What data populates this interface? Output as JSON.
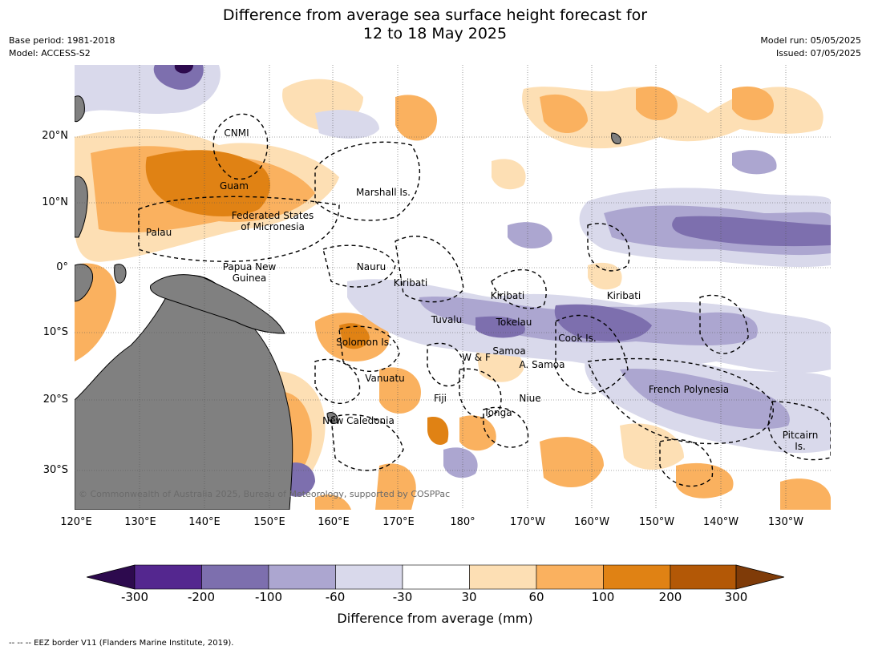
{
  "header": {
    "title_line1": "Difference from average sea surface height forecast for",
    "title_line2": "12 to 18 May 2025",
    "base_period": "Base period: 1981-2018",
    "model": "Model: ACCESS-S2",
    "model_run": "Model run: 05/05/2025",
    "issued": "Issued: 07/05/2025"
  },
  "axes": {
    "lat_labels": [
      "20°N",
      "10°N",
      "0°",
      "10°S",
      "20°S",
      "30°S"
    ],
    "lon_labels": [
      "120°E",
      "130°E",
      "140°E",
      "150°E",
      "160°E",
      "170°E",
      "180°",
      "170°W",
      "160°W",
      "150°W",
      "140°W",
      "130°W"
    ]
  },
  "places": [
    {
      "name": "CNMI"
    },
    {
      "name": "Guam"
    },
    {
      "name": "Marshall Is."
    },
    {
      "name": "Federated States\nof Micronesia"
    },
    {
      "name": "Palau"
    },
    {
      "name": "Nauru"
    },
    {
      "name": "Papua New\nGuinea"
    },
    {
      "name": "Kiribati"
    },
    {
      "name": "Kiribati"
    },
    {
      "name": "Kiribati"
    },
    {
      "name": "Tuvalu"
    },
    {
      "name": "Tokelau"
    },
    {
      "name": "Cook Is."
    },
    {
      "name": "Solomon Is."
    },
    {
      "name": "Samoa"
    },
    {
      "name": "W & F"
    },
    {
      "name": "A. Samoa"
    },
    {
      "name": "Vanuatu"
    },
    {
      "name": "Fiji"
    },
    {
      "name": "Niue"
    },
    {
      "name": "Tonga"
    },
    {
      "name": "French Polynesia"
    },
    {
      "name": "New Caledonia"
    },
    {
      "name": "Pitcairn\nIs."
    }
  ],
  "copyright": "© Commonwealth of Australia 2025, Bureau of Meteorology, supported by COSPPac",
  "colorbar": {
    "ticks": [
      "-300",
      "-200",
      "-100",
      "-60",
      "-30",
      "30",
      "60",
      "100",
      "200",
      "300"
    ],
    "colors": [
      "#2d0a4e",
      "#54278f",
      "#7d6fae",
      "#aca6d0",
      "#d9d9eb",
      "#ffffff",
      "#fddfb4",
      "#fab15f",
      "#e08214",
      "#b35806",
      "#7f3b08"
    ],
    "label": "Difference from average (mm)"
  },
  "footnote": "--  --  -- EEZ border V11 (Flanders Marine Institute, 2019).",
  "legend_colors": {
    "land": "#808080"
  }
}
